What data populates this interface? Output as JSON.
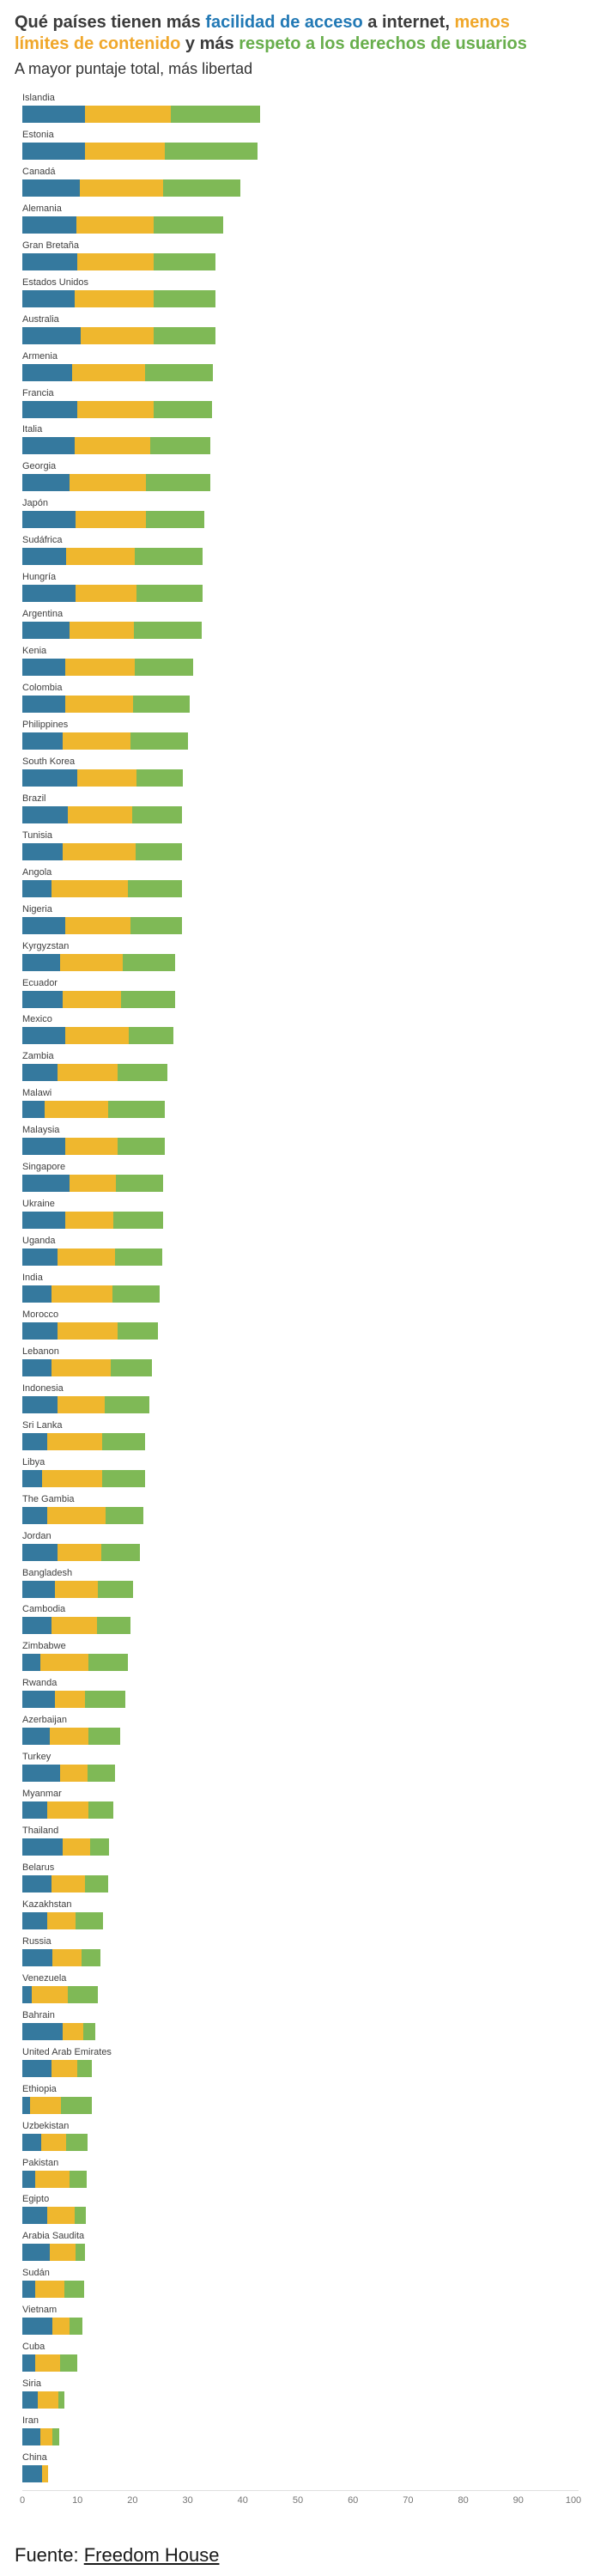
{
  "header": {
    "title_parts": [
      {
        "text": "Qué países tienen más ",
        "color": "dark"
      },
      {
        "text": "facilidad de acceso",
        "color": "blue"
      },
      {
        "text": " a internet, ",
        "color": "dark"
      },
      {
        "text": "menos límites de contenido",
        "color": "yellow"
      },
      {
        "text": " y más ",
        "color": "dark"
      },
      {
        "text": "respeto a los derechos de usuarios",
        "color": "green"
      }
    ],
    "subtitle": "A mayor puntaje total, más libertad"
  },
  "colors": {
    "access_blue": "#35799E",
    "content_yellow": "#EFB72E",
    "rights_green": "#7FB956",
    "title_blue": "#2279B5",
    "title_yellow": "#F0A72A",
    "title_green": "#68AE4C"
  },
  "chart_data": {
    "type": "bar",
    "variant": "horizontal-stacked",
    "title": "Qué países tienen más facilidad de acceso a internet, menos límites de contenido y más respeto a los derechos de usuarios",
    "subtitle": "A mayor puntaje total, más libertad",
    "xlabel": "",
    "ylabel": "",
    "xlim": [
      0,
      100
    ],
    "x_ticks": [
      0,
      10,
      20,
      30,
      40,
      50,
      60,
      70,
      80,
      90,
      100
    ],
    "grid": false,
    "legend_position": "inline-in-title",
    "series_names": [
      "facilidad de acceso",
      "límites de contenido",
      "respeto a los derechos de usuarios"
    ],
    "countries": [
      {
        "name": "Islandia",
        "values": [
          11.4,
          15.6,
          16.2
        ]
      },
      {
        "name": "Estonia",
        "values": [
          11.4,
          14.4,
          16.9
        ]
      },
      {
        "name": "Canadá",
        "values": [
          10.5,
          15.0,
          14.1
        ]
      },
      {
        "name": "Alemania",
        "values": [
          9.8,
          14.0,
          12.6
        ]
      },
      {
        "name": "Gran Bretaña",
        "values": [
          10.0,
          13.8,
          11.2
        ]
      },
      {
        "name": "Estados Unidos",
        "values": [
          9.5,
          14.3,
          11.2
        ]
      },
      {
        "name": "Australia",
        "values": [
          10.6,
          13.2,
          11.2
        ]
      },
      {
        "name": "Armenia",
        "values": [
          9.1,
          13.2,
          12.3
        ]
      },
      {
        "name": "Francia",
        "values": [
          9.9,
          14.0,
          10.6
        ]
      },
      {
        "name": "Italia",
        "values": [
          9.5,
          13.7,
          10.9
        ]
      },
      {
        "name": "Georgia",
        "values": [
          8.6,
          13.8,
          11.7
        ]
      },
      {
        "name": "Japón",
        "values": [
          9.6,
          12.8,
          10.7
        ]
      },
      {
        "name": "Sudáfrica",
        "values": [
          7.9,
          12.5,
          12.3
        ]
      },
      {
        "name": "Hungría",
        "values": [
          9.6,
          11.1,
          12.0
        ]
      },
      {
        "name": "Argentina",
        "values": [
          8.5,
          11.8,
          12.2
        ]
      },
      {
        "name": "Kenia",
        "values": [
          7.8,
          12.6,
          10.6
        ]
      },
      {
        "name": "Colombia",
        "values": [
          7.8,
          12.3,
          10.3
        ]
      },
      {
        "name": "Philippines",
        "values": [
          7.3,
          12.3,
          10.4
        ]
      },
      {
        "name": "South Korea",
        "values": [
          10.0,
          10.7,
          8.4
        ]
      },
      {
        "name": "Brazil",
        "values": [
          8.2,
          11.8,
          9.0
        ]
      },
      {
        "name": "Tunisia",
        "values": [
          7.3,
          13.3,
          8.4
        ]
      },
      {
        "name": "Angola",
        "values": [
          5.3,
          13.9,
          9.8
        ]
      },
      {
        "name": "Nigeria",
        "values": [
          7.8,
          11.8,
          9.4
        ]
      },
      {
        "name": "Kyrgyzstan",
        "values": [
          6.8,
          11.5,
          9.4
        ]
      },
      {
        "name": "Ecuador",
        "values": [
          7.3,
          10.6,
          9.8
        ]
      },
      {
        "name": "Mexico",
        "values": [
          7.8,
          11.5,
          8.1
        ]
      },
      {
        "name": "Zambia",
        "values": [
          6.4,
          10.9,
          9.1
        ]
      },
      {
        "name": "Malawi",
        "values": [
          4.0,
          11.5,
          10.4
        ]
      },
      {
        "name": "Malaysia",
        "values": [
          7.8,
          9.5,
          8.6
        ]
      },
      {
        "name": "Singapore",
        "values": [
          8.6,
          8.4,
          8.5
        ]
      },
      {
        "name": "Ukraine",
        "values": [
          7.8,
          8.7,
          9.0
        ]
      },
      {
        "name": "Uganda",
        "values": [
          6.4,
          10.5,
          8.5
        ]
      },
      {
        "name": "India",
        "values": [
          5.3,
          11.1,
          8.6
        ]
      },
      {
        "name": "Morocco",
        "values": [
          6.4,
          10.9,
          7.3
        ]
      },
      {
        "name": "Lebanon",
        "values": [
          5.3,
          10.7,
          7.6
        ]
      },
      {
        "name": "Indonesia",
        "values": [
          6.4,
          8.6,
          8.1
        ]
      },
      {
        "name": "Sri Lanka",
        "values": [
          4.5,
          10.0,
          7.8
        ]
      },
      {
        "name": "Libya",
        "values": [
          3.6,
          10.9,
          7.8
        ]
      },
      {
        "name": "The Gambia",
        "values": [
          4.5,
          10.6,
          6.8
        ]
      },
      {
        "name": "Jordan",
        "values": [
          6.4,
          8.0,
          7.0
        ]
      },
      {
        "name": "Bangladesh",
        "values": [
          5.9,
          7.8,
          6.4
        ]
      },
      {
        "name": "Cambodia",
        "values": [
          5.3,
          8.2,
          6.1
        ]
      },
      {
        "name": "Zimbabwe",
        "values": [
          3.2,
          8.8,
          7.1
        ]
      },
      {
        "name": "Rwanda",
        "values": [
          5.9,
          5.4,
          7.4
        ]
      },
      {
        "name": "Azerbaijan",
        "values": [
          5.0,
          7.0,
          5.8
        ]
      },
      {
        "name": "Turkey",
        "values": [
          6.8,
          5.1,
          4.9
        ]
      },
      {
        "name": "Myanmar",
        "values": [
          4.5,
          7.5,
          4.5
        ]
      },
      {
        "name": "Thailand",
        "values": [
          7.3,
          5.0,
          3.4
        ]
      },
      {
        "name": "Belarus",
        "values": [
          5.3,
          6.0,
          4.3
        ]
      },
      {
        "name": "Kazakhstan",
        "values": [
          4.5,
          5.1,
          5.0
        ]
      },
      {
        "name": "Russia",
        "values": [
          5.5,
          5.2,
          3.5
        ]
      },
      {
        "name": "Venezuela",
        "values": [
          1.7,
          6.6,
          5.4
        ]
      },
      {
        "name": "Bahrain",
        "values": [
          7.3,
          3.7,
          2.2
        ]
      },
      {
        "name": "United Arab Emirates",
        "values": [
          5.3,
          4.7,
          2.6
        ]
      },
      {
        "name": "Ethiopia",
        "values": [
          1.4,
          5.6,
          5.6
        ]
      },
      {
        "name": "Uzbekistan",
        "values": [
          3.4,
          4.5,
          3.9
        ]
      },
      {
        "name": "Pakistan",
        "values": [
          2.3,
          6.2,
          3.2
        ]
      },
      {
        "name": "Egipto",
        "values": [
          4.5,
          5.0,
          2.1
        ]
      },
      {
        "name": "Arabia Saudita",
        "values": [
          5.0,
          4.6,
          1.8
        ]
      },
      {
        "name": "Sudán",
        "values": [
          2.3,
          5.4,
          3.5
        ]
      },
      {
        "name": "Vietnam",
        "values": [
          5.5,
          3.1,
          2.3
        ]
      },
      {
        "name": "Cuba",
        "values": [
          2.3,
          4.6,
          3.1
        ]
      },
      {
        "name": "Siria",
        "values": [
          2.8,
          3.7,
          1.2
        ]
      },
      {
        "name": "Iran",
        "values": [
          3.3,
          2.1,
          1.3
        ]
      },
      {
        "name": "China",
        "values": [
          3.6,
          1.0,
          0
        ]
      }
    ]
  },
  "footer": {
    "source_prefix": "Fuente:",
    "source_link": "Freedom House"
  }
}
